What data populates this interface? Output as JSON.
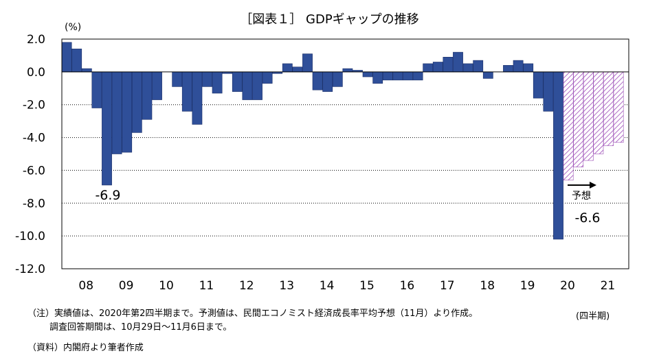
{
  "chart_data": {
    "type": "bar",
    "title": "［図表１］ GDPギャップの推移",
    "unit_label": "(%)",
    "xlabel": "",
    "ylabel": "",
    "ylim": [
      -12,
      2
    ],
    "yticks": [
      "2.0",
      "0.0",
      "-2.0",
      "-4.0",
      "-6.0",
      "-8.0",
      "-10.0",
      "-12.0"
    ],
    "ytick_values": [
      2,
      0,
      -2,
      -4,
      -6,
      -8,
      -10,
      -12
    ],
    "grid": "horizontal dotted",
    "x_year_labels": [
      "08",
      "09",
      "10",
      "11",
      "12",
      "13",
      "14",
      "15",
      "16",
      "17",
      "18",
      "19",
      "20",
      "21"
    ],
    "actual_color": "#2f4f99",
    "forecast_color": "#c9a0d6",
    "series": [
      {
        "name": "実績",
        "values": [
          1.8,
          1.4,
          0.2,
          -2.2,
          -6.9,
          -5.0,
          -4.9,
          -3.7,
          -2.9,
          -1.7,
          0.0,
          -0.9,
          -2.4,
          -3.2,
          -0.9,
          -1.3,
          -0.1,
          -1.2,
          -1.7,
          -1.7,
          -0.7,
          -0.1,
          0.5,
          0.3,
          1.1,
          -1.1,
          -1.2,
          -0.9,
          0.2,
          0.1,
          -0.3,
          -0.7,
          -0.5,
          -0.5,
          -0.5,
          -0.5,
          0.5,
          0.6,
          0.9,
          1.2,
          0.5,
          0.7,
          -0.4,
          0.0,
          0.4,
          0.7,
          0.5,
          -1.6,
          -2.4,
          -10.2
        ]
      },
      {
        "name": "予測",
        "values": [
          -6.6,
          -5.8,
          -5.4,
          -5.0,
          -4.5,
          -4.3
        ]
      }
    ],
    "annotations": [
      {
        "text": "-6.9",
        "target": "2009Q1"
      },
      {
        "text": "-6.6",
        "target": "2020Q3"
      },
      {
        "text": "予想",
        "target": "forecast-start"
      }
    ]
  },
  "notes": {
    "period_label": "(四半期)",
    "note_line1": "（注）実績値は、2020年第2四半期まで。予測値は、民間エコノミスト経済成長率平均予想（11月）より作成。",
    "note_line2": "調査回答期間は、10月29日～11月6日まで。",
    "source": "（資料）内閣府より筆者作成"
  }
}
